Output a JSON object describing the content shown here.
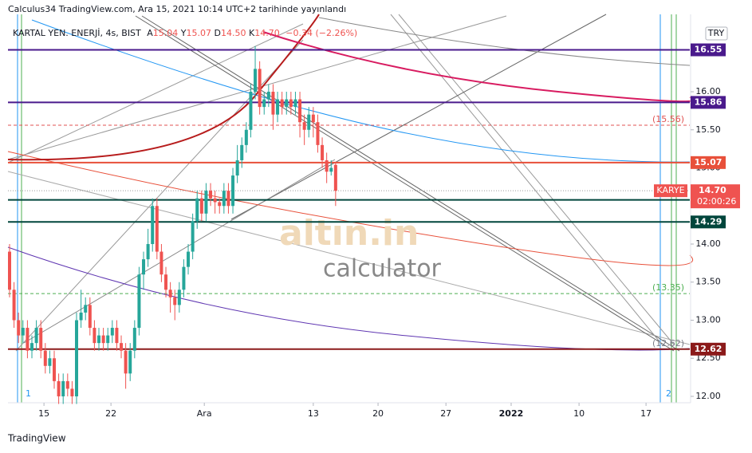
{
  "header": "Calculus34 TradingView.com, Ara 15, 2021 10:14 UTC+2 tarihinde yayınlandı",
  "footer": "TradingView",
  "chart_data": {
    "type": "candlestick",
    "title": "KARTAL YEN. ENERJİ, 4s, BIST",
    "ohlc_prefixes": [
      "A",
      "Y",
      "D",
      "K"
    ],
    "last_labels": [
      "15.04",
      "15.07",
      "14.50",
      "14.70"
    ],
    "change": "−0.34 (−2.26%)",
    "currency": "TRY",
    "symbol_tag": "KARYE",
    "countdown": "02:00:26",
    "markers": [
      "1",
      "2"
    ],
    "watermark": [
      "altın.in",
      "calculator"
    ],
    "up_color": "#26a69a",
    "down_color": "#ef5350",
    "open": [
      13.9,
      13.4,
      13.0,
      12.8,
      12.9,
      12.6,
      12.7,
      12.9,
      12.6,
      12.4,
      12.5,
      12.2,
      12.0,
      12.2,
      12.1,
      12.0,
      13.0,
      13.1,
      13.2,
      12.9,
      12.7,
      12.8,
      12.7,
      12.8,
      12.9,
      12.7,
      12.6,
      12.3,
      12.6,
      12.9,
      13.6,
      13.8,
      14.0,
      14.5,
      13.9,
      13.6,
      13.4,
      13.3,
      13.2,
      13.4,
      13.7,
      13.9,
      14.3,
      14.6,
      14.4,
      14.7,
      14.6,
      14.55,
      14.5,
      14.7,
      14.5,
      14.9,
      15.1,
      15.3,
      15.5,
      16.0,
      16.3,
      15.8,
      15.9,
      16.0,
      15.7,
      15.9,
      15.8,
      15.9,
      15.8,
      15.9,
      15.6,
      15.5,
      15.7,
      15.6,
      15.3,
      15.1,
      14.95,
      15.04
    ],
    "high": [
      14.0,
      13.5,
      13.1,
      13.0,
      13.0,
      12.8,
      13.0,
      13.0,
      12.7,
      12.6,
      12.6,
      12.3,
      12.3,
      12.3,
      12.2,
      13.1,
      13.4,
      13.3,
      13.3,
      13.0,
      12.9,
      12.9,
      12.9,
      13.0,
      13.0,
      12.8,
      12.7,
      12.7,
      13.0,
      13.7,
      13.9,
      14.2,
      14.6,
      14.6,
      14.0,
      13.7,
      13.5,
      13.4,
      13.5,
      13.8,
      14.0,
      14.4,
      14.7,
      14.7,
      14.8,
      14.8,
      14.7,
      14.6,
      14.8,
      14.8,
      15.0,
      15.3,
      15.4,
      15.6,
      16.1,
      16.6,
      16.4,
      16.0,
      16.1,
      16.1,
      16.0,
      16.0,
      16.0,
      16.0,
      16.0,
      16.0,
      15.7,
      15.8,
      15.8,
      15.7,
      15.4,
      15.2,
      15.1,
      15.07
    ],
    "low": [
      13.3,
      12.9,
      12.7,
      12.7,
      12.5,
      12.5,
      12.6,
      12.5,
      12.3,
      12.3,
      12.1,
      11.9,
      11.9,
      12.0,
      11.9,
      11.9,
      12.9,
      13.0,
      12.8,
      12.6,
      12.6,
      12.6,
      12.6,
      12.7,
      12.6,
      12.5,
      12.1,
      12.2,
      12.5,
      12.8,
      13.4,
      13.7,
      13.9,
      13.8,
      13.5,
      13.3,
      13.1,
      13.0,
      13.1,
      13.3,
      13.6,
      13.8,
      14.2,
      14.3,
      14.3,
      14.5,
      14.4,
      14.4,
      14.4,
      14.4,
      14.4,
      14.8,
      15.0,
      15.2,
      15.4,
      15.9,
      15.7,
      15.7,
      15.8,
      15.5,
      15.6,
      15.7,
      15.7,
      15.7,
      15.7,
      15.4,
      15.3,
      15.4,
      15.4,
      15.2,
      15.0,
      14.8,
      14.9,
      14.5
    ],
    "close": [
      13.4,
      13.0,
      12.8,
      12.9,
      12.6,
      12.7,
      12.9,
      12.6,
      12.4,
      12.5,
      12.2,
      12.0,
      12.2,
      12.1,
      12.0,
      13.0,
      13.1,
      13.2,
      12.9,
      12.7,
      12.8,
      12.7,
      12.8,
      12.9,
      12.7,
      12.6,
      12.3,
      12.6,
      12.9,
      13.6,
      13.8,
      14.0,
      14.5,
      13.9,
      13.6,
      13.4,
      13.3,
      13.2,
      13.4,
      13.7,
      13.9,
      14.3,
      14.6,
      14.4,
      14.7,
      14.6,
      14.55,
      14.5,
      14.7,
      14.5,
      14.9,
      15.1,
      15.3,
      15.5,
      16.0,
      16.3,
      15.8,
      15.9,
      16.0,
      15.7,
      15.9,
      15.8,
      15.9,
      15.8,
      15.9,
      15.6,
      15.5,
      15.7,
      15.6,
      15.3,
      15.1,
      14.95,
      15.0,
      14.7
    ],
    "ylim": [
      11.916,
      17.016
    ],
    "yticks": [
      {
        "value": 12,
        "label": "12.00"
      },
      {
        "value": 12.5,
        "label": "12.50"
      },
      {
        "value": 13,
        "label": "13.00"
      },
      {
        "value": 13.5,
        "label": "13.50"
      },
      {
        "value": 14,
        "label": "14.00"
      },
      {
        "value": 15,
        "label": "15.00"
      },
      {
        "value": 15.5,
        "label": "15.50"
      },
      {
        "value": 16,
        "label": "16.00"
      }
    ],
    "xlim": [
      -0.357,
      152.3
    ],
    "xticks": [
      {
        "value": 7.7,
        "label": "15"
      },
      {
        "value": 22.7,
        "label": "22"
      },
      {
        "value": 43.6,
        "label": "Ara"
      },
      {
        "value": 68,
        "label": "13"
      },
      {
        "value": 82.5,
        "label": "20"
      },
      {
        "value": 97.7,
        "label": "27"
      },
      {
        "value": 112.3,
        "label": "2022"
      },
      {
        "value": 127.5,
        "label": "10"
      },
      {
        "value": 142.5,
        "label": "17"
      }
    ],
    "levels": [
      {
        "value": 16.55,
        "color": "#4a1a8c"
      },
      {
        "value": 15.86,
        "color": "#4a1a8c"
      },
      {
        "value": 15.07,
        "color": "#e8503a"
      },
      {
        "value": 14.58,
        "color": "#00463c"
      },
      {
        "value": 14.29,
        "color": "#00463c"
      },
      {
        "value": 12.62,
        "color": "#8b1a1a"
      }
    ],
    "dashed_levels": [
      {
        "value": 15.56,
        "label": "(15.56)",
        "color": "#e05050"
      },
      {
        "value": 13.35,
        "label": "(13.35)",
        "color": "#4caf50"
      },
      {
        "value": 12.62,
        "label": "(12.62)",
        "color": "#787b86"
      }
    ]
  }
}
